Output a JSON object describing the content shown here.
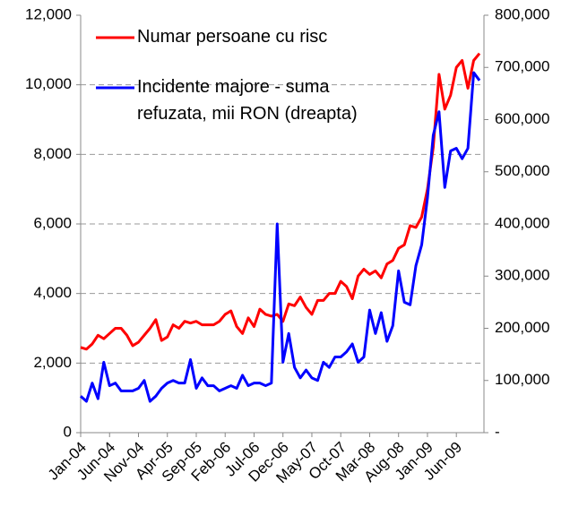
{
  "chart_data": {
    "type": "line",
    "categories": [
      "Jan-04",
      null,
      null,
      null,
      null,
      "Jun-04",
      null,
      null,
      null,
      null,
      "Nov-04",
      null,
      null,
      null,
      null,
      "Apr-05",
      null,
      null,
      null,
      null,
      "Sep-05",
      null,
      null,
      null,
      null,
      "Feb-06",
      null,
      null,
      null,
      null,
      "Jul-06",
      null,
      null,
      null,
      null,
      "Dec-06",
      null,
      null,
      null,
      null,
      "May-07",
      null,
      null,
      null,
      null,
      "Oct-07",
      null,
      null,
      null,
      null,
      "Mar-08",
      null,
      null,
      null,
      null,
      "Aug-08",
      null,
      null,
      null,
      null,
      "Jan-09",
      null,
      null,
      null,
      null,
      "Jun-09",
      null,
      null,
      null,
      null
    ],
    "series": [
      {
        "name": "Numar persoane cu risc",
        "color": "#ff0000",
        "values": [
          2450,
          2400,
          2550,
          2800,
          2700,
          2850,
          3000,
          3000,
          2800,
          2500,
          2600,
          2800,
          3000,
          3250,
          2650,
          2750,
          3100,
          3000,
          3200,
          3150,
          3200,
          3100,
          3100,
          3100,
          3200,
          3400,
          3500,
          3050,
          2850,
          3300,
          3050,
          3550,
          3400,
          3350,
          3400,
          3200,
          3700,
          3650,
          3900,
          3600,
          3400,
          3800,
          3800,
          4000,
          4000,
          4350,
          4200,
          3850,
          4500,
          4700,
          4550,
          4650,
          4450,
          4850,
          4950,
          5300,
          5400,
          5950,
          5900,
          6200,
          7000,
          8200,
          10300,
          9300,
          9700,
          10500,
          10700,
          9900,
          10700,
          10900
        ]
      },
      {
        "name": "Incidente majore - suma refuzata, mii RON (dreapta)",
        "color": "#0000ff",
        "axis": "y2",
        "values": [
          70000,
          60000,
          95000,
          65000,
          135000,
          90000,
          95000,
          80000,
          80000,
          80000,
          85000,
          100000,
          60000,
          70000,
          85000,
          95000,
          100000,
          95000,
          95000,
          140000,
          85000,
          105000,
          90000,
          90000,
          80000,
          85000,
          90000,
          85000,
          110000,
          90000,
          95000,
          95000,
          90000,
          95000,
          400000,
          135000,
          190000,
          125000,
          105000,
          120000,
          105000,
          100000,
          135000,
          125000,
          145000,
          145000,
          155000,
          170000,
          135000,
          145000,
          235000,
          190000,
          230000,
          175000,
          205000,
          310000,
          250000,
          245000,
          320000,
          360000,
          450000,
          570000,
          615000,
          470000,
          540000,
          545000,
          525000,
          545000,
          690000,
          675000
        ]
      }
    ],
    "ylim": [
      0,
      12000
    ],
    "yticks": [
      0,
      {
        "value": 2000,
        "label": "2,000"
      },
      {
        "value": 4000,
        "label": "4,000"
      },
      {
        "value": 6000,
        "label": "6,000"
      },
      {
        "value": 8000,
        "label": "8,000"
      },
      {
        "value": 10000,
        "label": "10,000"
      },
      {
        "value": 12000,
        "label": "12,000"
      }
    ],
    "y2lim": [
      0,
      800000
    ],
    "y2ticks": [
      {
        "value": 0,
        "label": "-"
      },
      {
        "value": 100000,
        "label": "100,000"
      },
      {
        "value": 200000,
        "label": "200,000"
      },
      {
        "value": 300000,
        "label": "300,000"
      },
      {
        "value": 400000,
        "label": "400,000"
      },
      {
        "value": 500000,
        "label": "500,000"
      },
      {
        "value": 600000,
        "label": "600,000"
      },
      {
        "value": 700000,
        "label": "700,000"
      },
      {
        "value": 800000,
        "label": "800,000"
      }
    ],
    "grid": true
  }
}
